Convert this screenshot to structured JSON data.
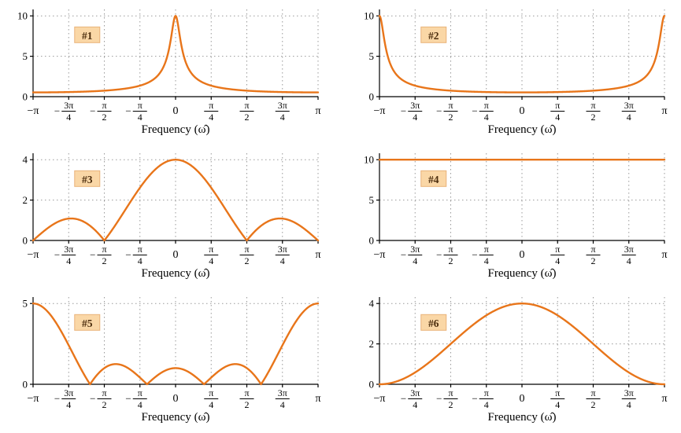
{
  "style": {
    "curve_color": "#E8751A",
    "label_bg": "#FAD7A6",
    "label_border": "#E9B27A",
    "label_text_color": "#4D2E0E",
    "grid_color": "#999999",
    "axis_color": "#000000",
    "background": "#ffffff"
  },
  "xticks": [
    {
      "label": "−π",
      "value_over_pi": -1
    },
    {
      "label": "−3π/4",
      "value_over_pi": -0.75
    },
    {
      "label": "−π/2",
      "value_over_pi": -0.5
    },
    {
      "label": "−π/4",
      "value_over_pi": -0.25
    },
    {
      "label": "0",
      "value_over_pi": 0
    },
    {
      "label": "π/4",
      "value_over_pi": 0.25
    },
    {
      "label": "π/2",
      "value_over_pi": 0.5
    },
    {
      "label": "3π/4",
      "value_over_pi": 0.75
    },
    {
      "label": "π",
      "value_over_pi": 1
    }
  ],
  "chart_data": [
    {
      "type": "line",
      "label": "#1",
      "xlabel": "Frequency (ω̂)",
      "xlim_over_pi": [
        -1,
        1
      ],
      "ylim": [
        0,
        10.8
      ],
      "yticks": [
        0,
        5,
        10
      ],
      "curve": {
        "kind": "one_pole",
        "a": 0.9,
        "gain": 1
      },
      "sample_x_over_pi": [
        -1,
        -0.875,
        -0.75,
        -0.625,
        -0.5,
        -0.375,
        -0.25,
        -0.125,
        0,
        0.125,
        0.25,
        0.375,
        0.5,
        0.625,
        0.75,
        0.875,
        1
      ],
      "sample_y": [
        0.526,
        0.537,
        0.57,
        0.633,
        0.743,
        0.944,
        1.364,
        2.608,
        10,
        2.608,
        1.364,
        0.944,
        0.743,
        0.633,
        0.57,
        0.537,
        0.526
      ]
    },
    {
      "type": "line",
      "label": "#2",
      "xlabel": "Frequency (ω̂)",
      "xlim_over_pi": [
        -1,
        1
      ],
      "ylim": [
        0,
        10.8
      ],
      "yticks": [
        0,
        5,
        10
      ],
      "curve": {
        "kind": "one_pole",
        "a": -0.9,
        "gain": 1
      },
      "sample_x_over_pi": [
        -1,
        -0.875,
        -0.75,
        -0.625,
        -0.5,
        -0.375,
        -0.25,
        -0.125,
        0,
        0.125,
        0.25,
        0.375,
        0.5,
        0.625,
        0.75,
        0.875,
        1
      ],
      "sample_y": [
        10,
        2.608,
        1.364,
        0.944,
        0.743,
        0.633,
        0.57,
        0.537,
        0.526,
        0.537,
        0.57,
        0.633,
        0.743,
        0.944,
        1.364,
        2.608,
        10
      ]
    },
    {
      "type": "line",
      "label": "#3",
      "xlabel": "Frequency (ω̂)",
      "xlim_over_pi": [
        -1,
        1
      ],
      "ylim": [
        0,
        4.32
      ],
      "yticks": [
        0,
        2,
        4
      ],
      "curve": {
        "kind": "dirichlet",
        "N": 4,
        "shift_over_pi": 0
      },
      "sample_x_over_pi": [
        -1,
        -0.875,
        -0.75,
        -0.625,
        -0.5,
        -0.375,
        -0.25,
        -0.125,
        0,
        0.125,
        0.25,
        0.375,
        0.5,
        0.625,
        0.75,
        0.875,
        1
      ],
      "sample_y": [
        0,
        0.721,
        1.082,
        0.85,
        0,
        1.273,
        2.613,
        3.625,
        4,
        3.625,
        2.613,
        1.273,
        0,
        0.85,
        1.082,
        0.721,
        0
      ]
    },
    {
      "type": "line",
      "label": "#4",
      "xlabel": "Frequency (ω̂)",
      "xlim_over_pi": [
        -1,
        1
      ],
      "ylim": [
        0,
        10.8
      ],
      "yticks": [
        0,
        5,
        10
      ],
      "curve": {
        "kind": "constant",
        "value": 10
      },
      "sample_x_over_pi": [
        -1,
        -0.875,
        -0.75,
        -0.625,
        -0.5,
        -0.375,
        -0.25,
        -0.125,
        0,
        0.125,
        0.25,
        0.375,
        0.5,
        0.625,
        0.75,
        0.875,
        1
      ],
      "sample_y": [
        10,
        10,
        10,
        10,
        10,
        10,
        10,
        10,
        10,
        10,
        10,
        10,
        10,
        10,
        10,
        10,
        10
      ]
    },
    {
      "type": "line",
      "label": "#5",
      "xlabel": "Frequency (ω̂)",
      "xlim_over_pi": [
        -1,
        1
      ],
      "ylim": [
        0,
        5.4
      ],
      "yticks": [
        0,
        5
      ],
      "curve": {
        "kind": "dirichlet",
        "N": 5,
        "shift_over_pi": 1
      },
      "sample_x_over_pi": [
        -1,
        -0.875,
        -0.75,
        -0.625,
        -0.5,
        -0.375,
        -0.25,
        -0.125,
        0,
        0.125,
        0.25,
        0.375,
        0.5,
        0.625,
        0.75,
        0.875,
        1
      ],
      "sample_y": [
        5,
        4.262,
        2.414,
        0.351,
        1.0,
        1.18,
        0.414,
        0.567,
        1.0,
        0.567,
        0.414,
        1.18,
        1.0,
        0.351,
        2.414,
        4.262,
        5
      ]
    },
    {
      "type": "line",
      "label": "#6",
      "xlabel": "Frequency (ω̂)",
      "xlim_over_pi": [
        -1,
        1
      ],
      "ylim": [
        0,
        4.32
      ],
      "yticks": [
        0,
        2,
        4
      ],
      "curve": {
        "kind": "raised_cosine",
        "gain": 2
      },
      "sample_x_over_pi": [
        -1,
        -0.875,
        -0.75,
        -0.625,
        -0.5,
        -0.375,
        -0.25,
        -0.125,
        0,
        0.125,
        0.25,
        0.375,
        0.5,
        0.625,
        0.75,
        0.875,
        1
      ],
      "sample_y": [
        0,
        0.152,
        0.586,
        1.235,
        2,
        2.765,
        3.414,
        3.848,
        4,
        3.848,
        3.414,
        2.765,
        2,
        1.235,
        0.586,
        0.152,
        0
      ]
    }
  ]
}
